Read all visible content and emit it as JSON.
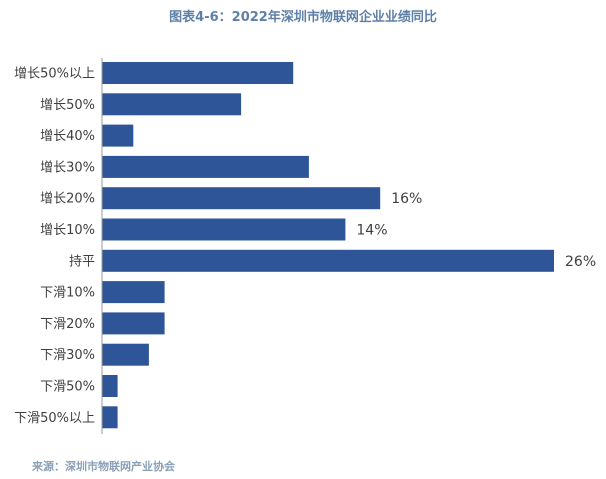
{
  "chart_data": {
    "type": "bar",
    "orientation": "horizontal",
    "title": "图表4-6：2022年深圳市物联网企业业绩同比",
    "categories": [
      "增长50%以上",
      "增长50%",
      "增长40%",
      "增长30%",
      "增长20%",
      "增长10%",
      "持平",
      "下滑10%",
      "下滑20%",
      "下滑30%",
      "下滑50%",
      "下滑50%以上"
    ],
    "values": [
      11.0,
      8.0,
      1.8,
      11.9,
      16,
      14,
      26,
      3.6,
      3.6,
      2.7,
      0.9,
      0.9
    ],
    "data_labels": [
      "",
      "",
      "",
      "",
      "16%",
      "14%",
      "26%",
      "",
      "",
      "",
      "",
      ""
    ],
    "unit": "%",
    "xlim": [
      0,
      26
    ],
    "grid": false,
    "bar_color": "#2e5597"
  },
  "footer": {
    "source": "来源：深圳市物联网产业协会"
  }
}
